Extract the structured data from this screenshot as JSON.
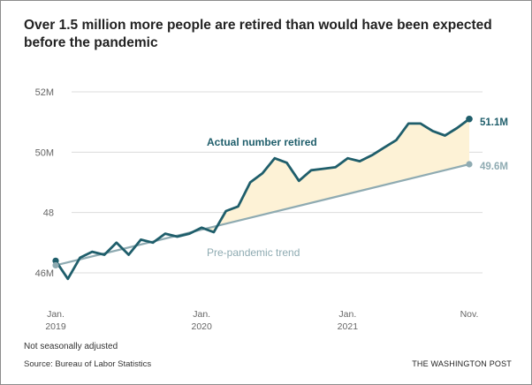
{
  "title_lines": [
    "Over 1.5 million more people are retired than would have been expected",
    "before the pandemic"
  ],
  "footer": {
    "note": "Not seasonally adjusted",
    "source": "Source: Bureau of Labor Statistics",
    "brand": "THE WASHINGTON POST"
  },
  "colors": {
    "actual": "#1f5e6b",
    "trend": "#8fabb2",
    "gap_fill": "#fdf2d6",
    "grid": "#dcdcdc",
    "axis_text": "#666666"
  },
  "chart_data": {
    "type": "line",
    "title": "Over 1.5 million more people are retired than would have been expected before the pandemic",
    "xlabel": "",
    "ylabel": "",
    "unit": "M",
    "ylim": [
      45.3,
      52.4
    ],
    "xlim": [
      0,
      34
    ],
    "y_ticks": [
      {
        "value": 46,
        "label": "46M"
      },
      {
        "value": 48,
        "label": "48"
      },
      {
        "value": 50,
        "label": "50M"
      },
      {
        "value": 52,
        "label": "52M"
      }
    ],
    "x_ticks": [
      {
        "index": 0,
        "line1": "Jan.",
        "line2": "2019"
      },
      {
        "index": 12,
        "line1": "Jan.",
        "line2": "2020"
      },
      {
        "index": 24,
        "line1": "Jan.",
        "line2": "2021"
      },
      {
        "index": 34,
        "line1": "Nov.",
        "line2": ""
      }
    ],
    "series": [
      {
        "name": "Actual number retired",
        "values": [
          46.4,
          45.8,
          46.5,
          46.7,
          46.6,
          47.0,
          46.6,
          47.1,
          47.0,
          47.3,
          47.2,
          47.3,
          47.5,
          47.35,
          48.05,
          48.2,
          49.0,
          49.3,
          49.8,
          49.65,
          49.05,
          49.4,
          49.45,
          49.5,
          49.8,
          49.7,
          49.9,
          50.15,
          50.4,
          50.95,
          50.95,
          50.7,
          50.55,
          50.8,
          51.1
        ],
        "end_label": "51.1M"
      },
      {
        "name": "Pre-pandemic trend",
        "values": [
          46.25,
          49.6
        ],
        "x": [
          0,
          34
        ],
        "end_label": "49.6M"
      }
    ],
    "annotations": [
      {
        "text": "Actual number retired",
        "series": "Actual number retired"
      },
      {
        "text": "Pre-pandemic trend",
        "series": "Pre-pandemic trend"
      }
    ]
  }
}
